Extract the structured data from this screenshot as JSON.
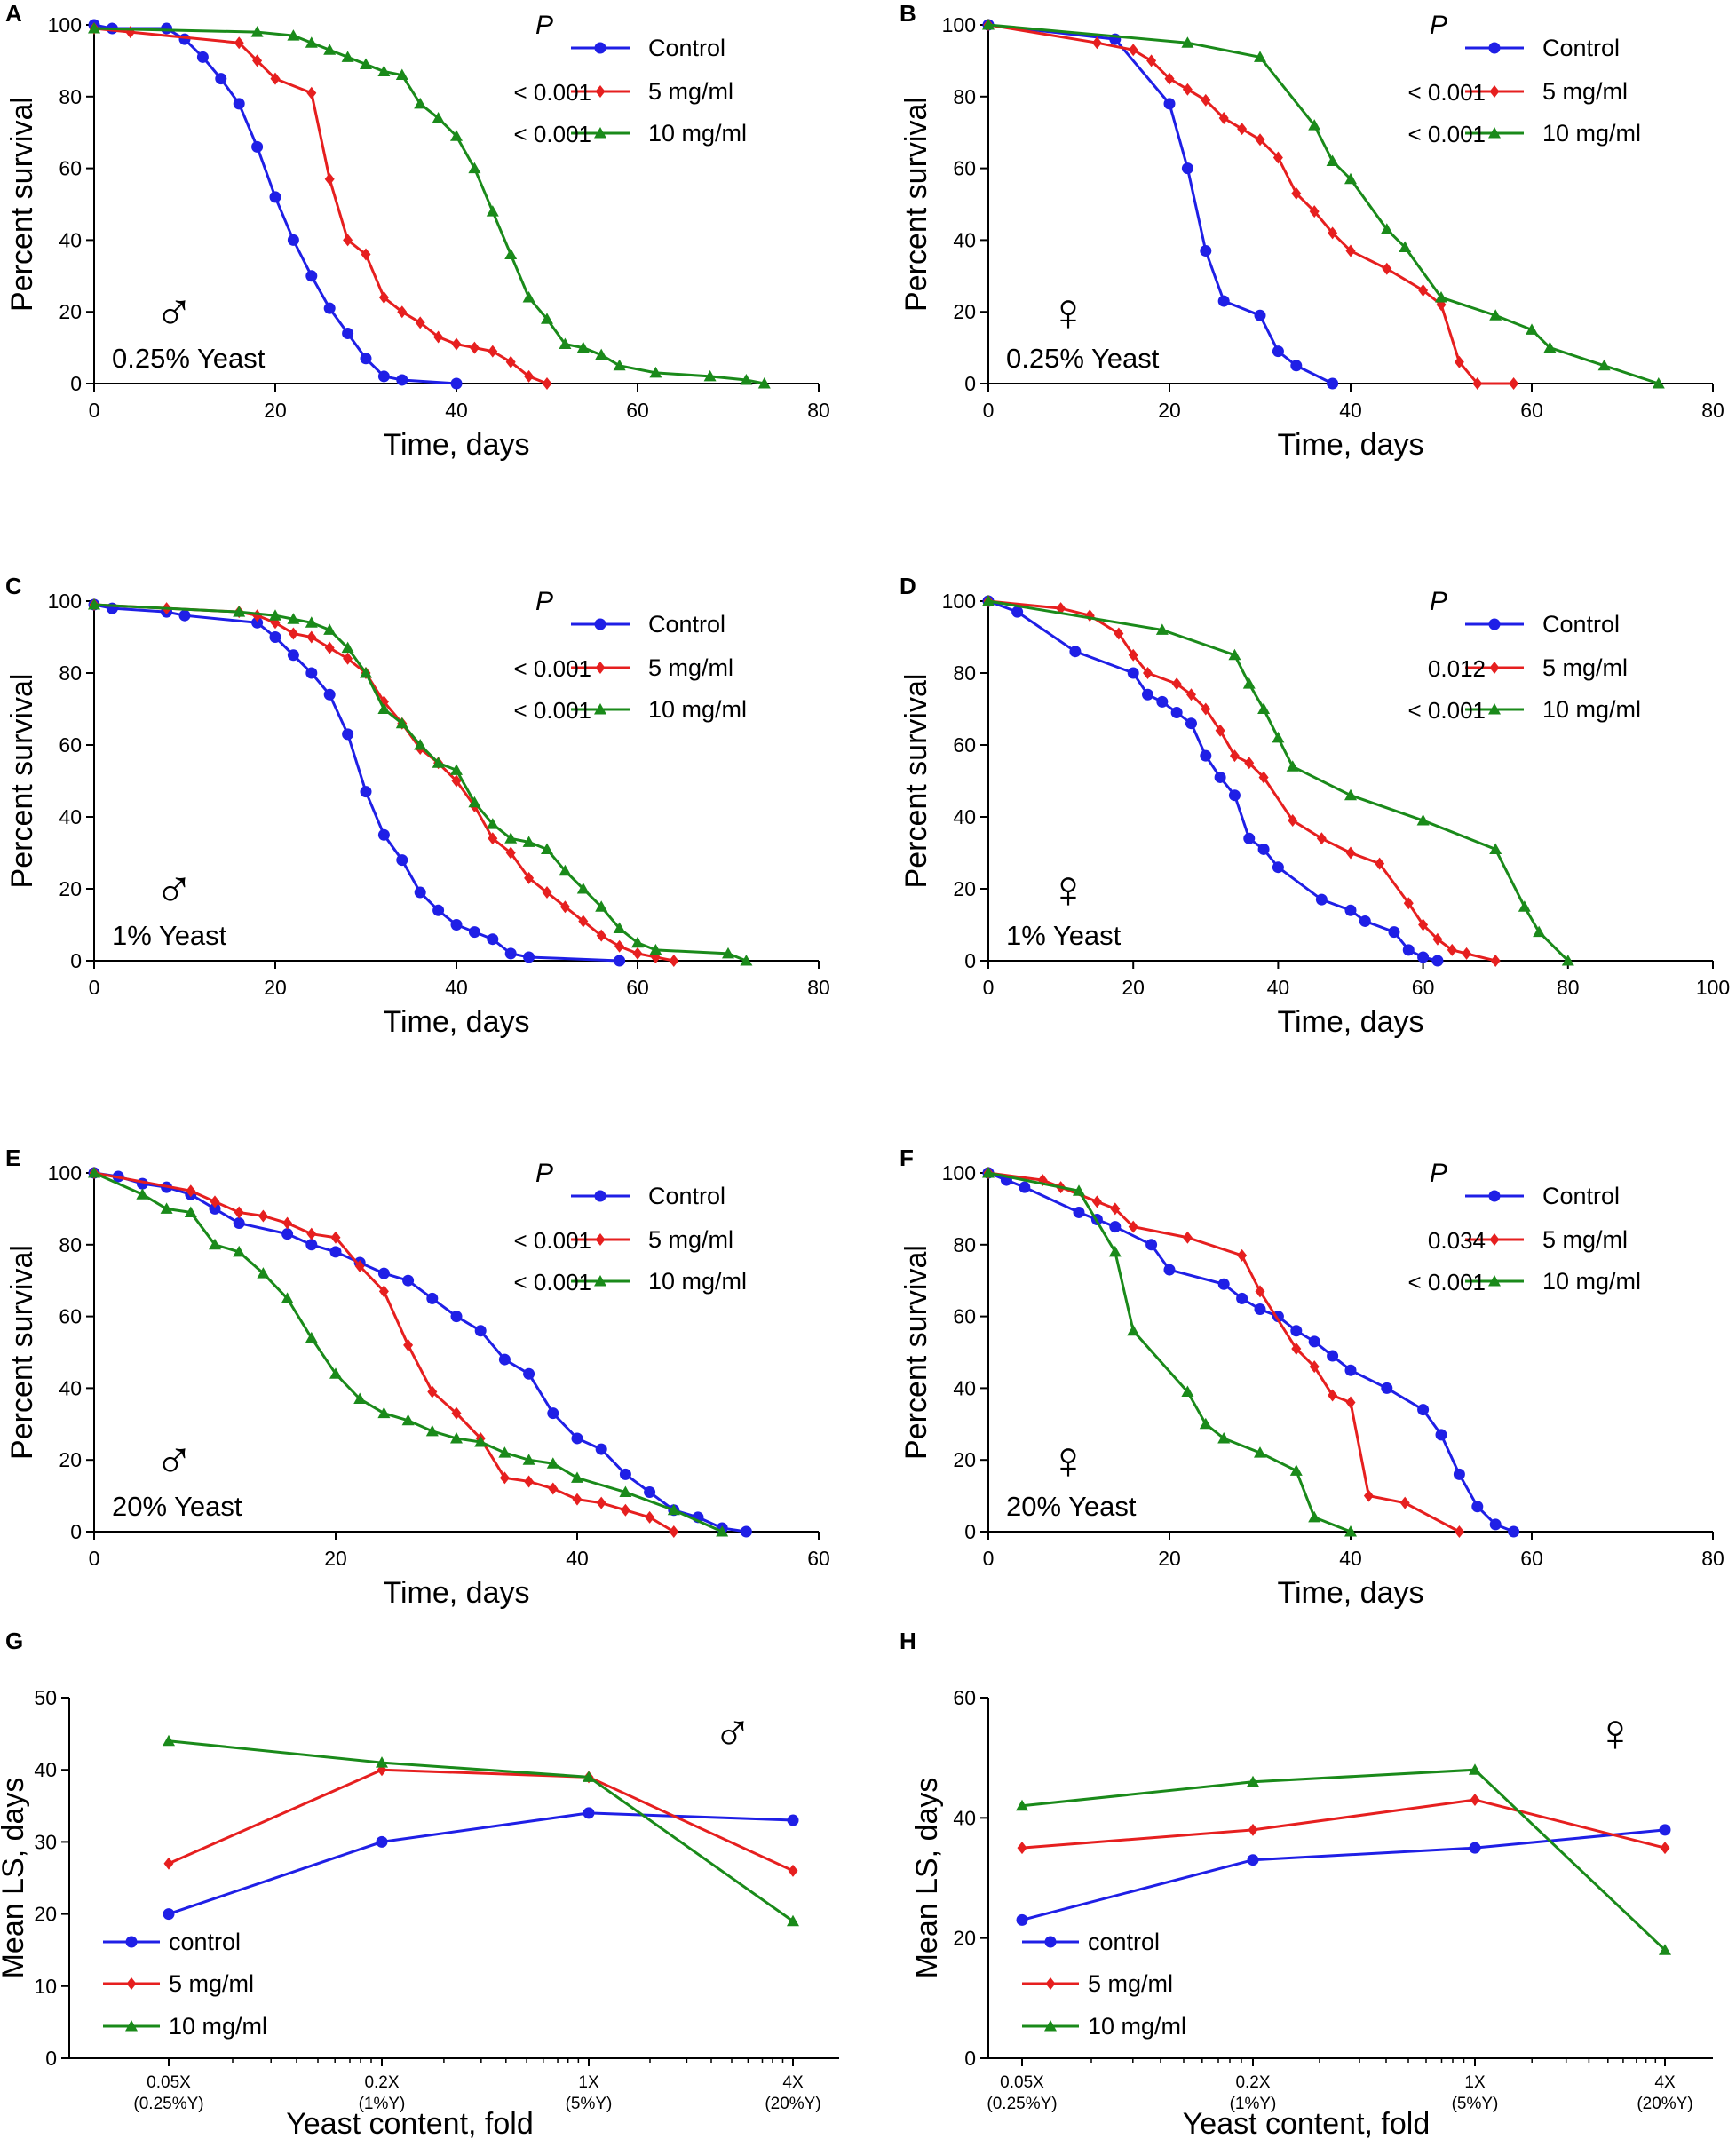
{
  "figure": {
    "colors": {
      "control": "#1f1fe6",
      "5 mg/ml": "#e61f1f",
      "10 mg/ml": "#1a8a1a",
      "axis": "#000000"
    },
    "pvalue_header": "P"
  },
  "chart_data": [
    {
      "panel": "A",
      "type": "line",
      "xlabel": "Time, days",
      "ylabel": "Percent survival",
      "xlim": [
        0,
        80
      ],
      "ylim": [
        0,
        100
      ],
      "xticks": [
        0,
        20,
        40,
        60,
        80
      ],
      "yticks": [
        0,
        20,
        40,
        60,
        80,
        100
      ],
      "sex": "male",
      "sex_symbol": "♂",
      "annotation": "0.25% Yeast",
      "pvalues": [
        "",
        "< 0.001",
        "< 0.001"
      ],
      "series": [
        {
          "name": "Control",
          "marker": "circle",
          "x": [
            0,
            2,
            8,
            10,
            12,
            14,
            16,
            18,
            20,
            22,
            24,
            26,
            28,
            30,
            32,
            34,
            40
          ],
          "y": [
            100,
            99,
            99,
            96,
            91,
            85,
            78,
            66,
            52,
            40,
            30,
            21,
            14,
            7,
            2,
            1,
            0
          ]
        },
        {
          "name": "5 mg/ml",
          "marker": "diamond",
          "x": [
            0,
            4,
            16,
            18,
            20,
            24,
            26,
            28,
            30,
            32,
            34,
            36,
            38,
            40,
            42,
            44,
            46,
            48,
            50
          ],
          "y": [
            99,
            98,
            95,
            90,
            85,
            81,
            57,
            40,
            36,
            24,
            20,
            17,
            13,
            11,
            10,
            9,
            6,
            2,
            0
          ]
        },
        {
          "name": "10 mg/ml",
          "marker": "triangle",
          "x": [
            0,
            18,
            22,
            24,
            26,
            28,
            30,
            32,
            34,
            36,
            38,
            40,
            42,
            44,
            46,
            48,
            50,
            52,
            54,
            56,
            58,
            62,
            68,
            72,
            74
          ],
          "y": [
            99,
            98,
            97,
            95,
            93,
            91,
            89,
            87,
            86,
            78,
            74,
            69,
            60,
            48,
            36,
            24,
            18,
            11,
            10,
            8,
            5,
            3,
            2,
            1,
            0
          ]
        }
      ]
    },
    {
      "panel": "B",
      "type": "line",
      "xlabel": "Time, days",
      "ylabel": "Percent survival",
      "xlim": [
        0,
        80
      ],
      "ylim": [
        0,
        100
      ],
      "xticks": [
        0,
        20,
        40,
        60,
        80
      ],
      "yticks": [
        0,
        20,
        40,
        60,
        80,
        100
      ],
      "sex": "female",
      "sex_symbol": "♀",
      "annotation": "0.25% Yeast",
      "pvalues": [
        "",
        "< 0.001",
        "< 0.001"
      ],
      "series": [
        {
          "name": "Control",
          "marker": "circle",
          "x": [
            0,
            14,
            20,
            22,
            24,
            26,
            30,
            32,
            34,
            38
          ],
          "y": [
            100,
            96,
            78,
            60,
            37,
            23,
            19,
            9,
            5,
            0
          ]
        },
        {
          "name": "5 mg/ml",
          "marker": "diamond",
          "x": [
            0,
            12,
            16,
            18,
            20,
            22,
            24,
            26,
            28,
            30,
            32,
            34,
            36,
            38,
            40,
            44,
            48,
            50,
            52,
            54,
            58
          ],
          "y": [
            100,
            95,
            93,
            90,
            85,
            82,
            79,
            74,
            71,
            68,
            63,
            53,
            48,
            42,
            37,
            32,
            26,
            22,
            6,
            0,
            0
          ]
        },
        {
          "name": "10 mg/ml",
          "marker": "triangle",
          "x": [
            0,
            22,
            30,
            36,
            38,
            40,
            44,
            46,
            50,
            56,
            60,
            62,
            68,
            74
          ],
          "y": [
            100,
            95,
            91,
            72,
            62,
            57,
            43,
            38,
            24,
            19,
            15,
            10,
            5,
            0
          ]
        }
      ]
    },
    {
      "panel": "C",
      "type": "line",
      "xlabel": "Time, days",
      "ylabel": "Percent survival",
      "xlim": [
        0,
        80
      ],
      "ylim": [
        0,
        100
      ],
      "xticks": [
        0,
        20,
        40,
        60,
        80
      ],
      "yticks": [
        0,
        20,
        40,
        60,
        80,
        100
      ],
      "sex": "male",
      "sex_symbol": "♂",
      "annotation": "1% Yeast",
      "pvalues": [
        "",
        "< 0.001",
        "< 0.001"
      ],
      "series": [
        {
          "name": "Control",
          "marker": "circle",
          "x": [
            0,
            2,
            8,
            10,
            18,
            20,
            22,
            24,
            26,
            28,
            30,
            32,
            34,
            36,
            38,
            40,
            42,
            44,
            46,
            48,
            58
          ],
          "y": [
            99,
            98,
            97,
            96,
            94,
            90,
            85,
            80,
            74,
            63,
            47,
            35,
            28,
            19,
            14,
            10,
            8,
            6,
            2,
            1,
            0
          ]
        },
        {
          "name": "5 mg/ml",
          "marker": "diamond",
          "x": [
            0,
            8,
            16,
            18,
            20,
            22,
            24,
            26,
            28,
            30,
            32,
            34,
            36,
            38,
            40,
            42,
            44,
            46,
            48,
            50,
            52,
            54,
            56,
            58,
            60,
            62,
            64
          ],
          "y": [
            99,
            98,
            97,
            96,
            94,
            91,
            90,
            87,
            84,
            80,
            72,
            66,
            59,
            55,
            50,
            43,
            34,
            30,
            23,
            19,
            15,
            11,
            7,
            4,
            2,
            1,
            0
          ]
        },
        {
          "name": "10 mg/ml",
          "marker": "triangle",
          "x": [
            0,
            16,
            20,
            22,
            24,
            26,
            28,
            30,
            32,
            34,
            36,
            38,
            40,
            42,
            44,
            46,
            48,
            50,
            52,
            54,
            56,
            58,
            60,
            62,
            70,
            72
          ],
          "y": [
            99,
            97,
            96,
            95,
            94,
            92,
            87,
            80,
            70,
            66,
            60,
            55,
            53,
            44,
            38,
            34,
            33,
            31,
            25,
            20,
            15,
            9,
            5,
            3,
            2,
            0
          ]
        }
      ]
    },
    {
      "panel": "D",
      "type": "line",
      "xlabel": "Time, days",
      "ylabel": "Percent survival",
      "xlim": [
        0,
        100
      ],
      "ylim": [
        0,
        100
      ],
      "xticks": [
        0,
        20,
        40,
        60,
        80,
        100
      ],
      "yticks": [
        0,
        20,
        40,
        60,
        80,
        100
      ],
      "sex": "female",
      "sex_symbol": "♀",
      "annotation": "1% Yeast",
      "pvalues": [
        "",
        "0.012",
        "< 0.001"
      ],
      "series": [
        {
          "name": "Control",
          "marker": "circle",
          "x": [
            0,
            4,
            12,
            20,
            22,
            24,
            26,
            28,
            30,
            32,
            34,
            36,
            38,
            40,
            46,
            50,
            52,
            56,
            58,
            60,
            62
          ],
          "y": [
            100,
            97,
            86,
            80,
            74,
            72,
            69,
            66,
            57,
            51,
            46,
            34,
            31,
            26,
            17,
            14,
            11,
            8,
            3,
            1,
            0
          ]
        },
        {
          "name": "5 mg/ml",
          "marker": "diamond",
          "x": [
            0,
            10,
            14,
            18,
            20,
            22,
            26,
            28,
            30,
            32,
            34,
            36,
            38,
            42,
            46,
            50,
            54,
            58,
            60,
            62,
            64,
            66,
            70
          ],
          "y": [
            100,
            98,
            96,
            91,
            85,
            80,
            77,
            74,
            70,
            64,
            57,
            55,
            51,
            39,
            34,
            30,
            27,
            16,
            10,
            6,
            3,
            2,
            0
          ]
        },
        {
          "name": "10 mg/ml",
          "marker": "triangle",
          "x": [
            0,
            24,
            34,
            36,
            38,
            40,
            42,
            50,
            60,
            70,
            74,
            76,
            80
          ],
          "y": [
            100,
            92,
            85,
            77,
            70,
            62,
            54,
            46,
            39,
            31,
            15,
            8,
            0
          ]
        }
      ]
    },
    {
      "panel": "E",
      "type": "line",
      "xlabel": "Time, days",
      "ylabel": "Percent survival",
      "xlim": [
        0,
        60
      ],
      "ylim": [
        0,
        100
      ],
      "xticks": [
        0,
        20,
        40,
        60
      ],
      "yticks": [
        0,
        20,
        40,
        60,
        80,
        100
      ],
      "sex": "male",
      "sex_symbol": "♂",
      "annotation": "20% Yeast",
      "pvalues": [
        "",
        "< 0.001",
        "< 0.001"
      ],
      "series": [
        {
          "name": "Control",
          "marker": "circle",
          "x": [
            0,
            2,
            4,
            6,
            8,
            10,
            12,
            16,
            18,
            20,
            22,
            24,
            26,
            28,
            30,
            32,
            34,
            36,
            38,
            40,
            42,
            44,
            46,
            48,
            50,
            52,
            54
          ],
          "y": [
            100,
            99,
            97,
            96,
            94,
            90,
            86,
            83,
            80,
            78,
            75,
            72,
            70,
            65,
            60,
            56,
            48,
            44,
            33,
            26,
            23,
            16,
            11,
            6,
            4,
            1,
            0
          ]
        },
        {
          "name": "5 mg/ml",
          "marker": "diamond",
          "x": [
            0,
            8,
            10,
            12,
            14,
            16,
            18,
            20,
            22,
            24,
            26,
            28,
            30,
            32,
            34,
            36,
            38,
            40,
            42,
            44,
            46,
            48
          ],
          "y": [
            100,
            95,
            92,
            89,
            88,
            86,
            83,
            82,
            74,
            67,
            52,
            39,
            33,
            26,
            15,
            14,
            12,
            9,
            8,
            6,
            4,
            0
          ]
        },
        {
          "name": "10 mg/ml",
          "marker": "triangle",
          "x": [
            0,
            4,
            6,
            8,
            10,
            12,
            14,
            16,
            18,
            20,
            22,
            24,
            26,
            28,
            30,
            32,
            34,
            36,
            38,
            40,
            44,
            48,
            52
          ],
          "y": [
            100,
            94,
            90,
            89,
            80,
            78,
            72,
            65,
            54,
            44,
            37,
            33,
            31,
            28,
            26,
            25,
            22,
            20,
            19,
            15,
            11,
            6,
            0
          ]
        }
      ]
    },
    {
      "panel": "F",
      "type": "line",
      "xlabel": "Time, days",
      "ylabel": "Percent survival",
      "xlim": [
        0,
        80
      ],
      "ylim": [
        0,
        100
      ],
      "xticks": [
        0,
        20,
        40,
        60,
        80
      ],
      "yticks": [
        0,
        20,
        40,
        60,
        80,
        100
      ],
      "sex": "female",
      "sex_symbol": "♀",
      "annotation": "20% Yeast",
      "pvalues": [
        "",
        "0.034",
        "< 0.001"
      ],
      "series": [
        {
          "name": "Control",
          "marker": "circle",
          "x": [
            0,
            2,
            4,
            10,
            12,
            14,
            18,
            20,
            26,
            28,
            30,
            32,
            34,
            36,
            38,
            40,
            44,
            48,
            50,
            52,
            54,
            56,
            58
          ],
          "y": [
            100,
            98,
            96,
            89,
            87,
            85,
            80,
            73,
            69,
            65,
            62,
            60,
            56,
            53,
            49,
            45,
            40,
            34,
            27,
            16,
            7,
            2,
            0
          ]
        },
        {
          "name": "5 mg/ml",
          "marker": "diamond",
          "x": [
            0,
            6,
            8,
            12,
            14,
            16,
            22,
            28,
            30,
            34,
            36,
            38,
            40,
            42,
            46,
            52
          ],
          "y": [
            100,
            98,
            96,
            92,
            90,
            85,
            82,
            77,
            67,
            51,
            46,
            38,
            36,
            10,
            8,
            0
          ]
        },
        {
          "name": "10 mg/ml",
          "marker": "triangle",
          "x": [
            0,
            10,
            14,
            16,
            22,
            24,
            26,
            30,
            34,
            36,
            40
          ],
          "y": [
            100,
            95,
            78,
            56,
            39,
            30,
            26,
            22,
            17,
            4,
            0
          ]
        }
      ]
    },
    {
      "panel": "G",
      "type": "line",
      "xlabel": "Yeast content, fold",
      "ylabel": "Mean LS, days",
      "ylim": [
        0,
        50
      ],
      "yticks": [
        0,
        10,
        20,
        30,
        40,
        50
      ],
      "categories": [
        "0.05X",
        "0.2X",
        "1X",
        "4X"
      ],
      "category_sublabels": [
        "(0.25%Y)",
        "(1%Y)",
        "(5%Y)",
        "(20%Y)"
      ],
      "sex": "male",
      "sex_symbol": "♂",
      "series": [
        {
          "name": "control",
          "marker": "circle",
          "values": [
            20,
            30,
            34,
            33
          ]
        },
        {
          "name": "5 mg/ml",
          "marker": "diamond",
          "values": [
            27,
            40,
            39,
            26
          ]
        },
        {
          "name": "10 mg/ml",
          "marker": "triangle",
          "values": [
            44,
            41,
            39,
            19
          ]
        }
      ]
    },
    {
      "panel": "H",
      "type": "line",
      "xlabel": "Yeast content, fold",
      "ylabel": "Mean LS, days",
      "ylim": [
        0,
        60
      ],
      "yticks": [
        0,
        20,
        40,
        60
      ],
      "categories": [
        "0.05X",
        "0.2X",
        "1X",
        "4X"
      ],
      "category_sublabels": [
        "(0.25%Y)",
        "(1%Y)",
        "(5%Y)",
        "(20%Y)"
      ],
      "sex": "female",
      "sex_symbol": "♀",
      "series": [
        {
          "name": "control",
          "marker": "circle",
          "values": [
            23,
            33,
            35,
            38
          ]
        },
        {
          "name": "5 mg/ml",
          "marker": "diamond",
          "values": [
            35,
            38,
            43,
            35
          ]
        },
        {
          "name": "10 mg/ml",
          "marker": "triangle",
          "values": [
            42,
            46,
            48,
            18
          ]
        }
      ]
    }
  ]
}
